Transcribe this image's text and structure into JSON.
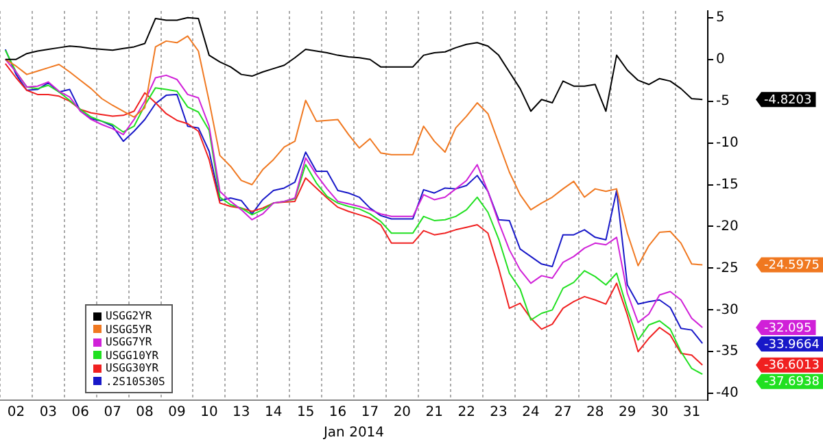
{
  "chart_data": {
    "type": "line",
    "xlabel": "Jan 2014",
    "categories": [
      null,
      "02",
      null,
      null,
      "03",
      null,
      null,
      "06",
      null,
      null,
      "07",
      null,
      null,
      "08",
      null,
      null,
      "09",
      null,
      null,
      "10",
      null,
      null,
      "13",
      null,
      null,
      "14",
      null,
      null,
      "15",
      null,
      null,
      "16",
      null,
      null,
      "17",
      null,
      null,
      "20",
      null,
      null,
      "21",
      null,
      null,
      "22",
      null,
      null,
      "23",
      null,
      null,
      "24",
      null,
      null,
      "27",
      null,
      null,
      "28",
      null,
      null,
      "29",
      null,
      null,
      "30",
      null,
      null,
      "31",
      null
    ],
    "ylim": [
      -40.8,
      5.8
    ],
    "yticks": [
      5,
      0,
      -5,
      -10,
      -15,
      -20,
      -25,
      -30,
      -35,
      -40
    ],
    "grid": "x",
    "legend": "bottom left",
    "marker": "none",
    "series": [
      {
        "name": "USGG2YR",
        "color": "#000000",
        "values": [
          0,
          0,
          0.7,
          1.0,
          1.2,
          1.4,
          1.6,
          1.5,
          1.3,
          1.2,
          1.1,
          1.3,
          1.5,
          1.9,
          4.9,
          4.7,
          4.7,
          5.0,
          4.9,
          0.5,
          -0.3,
          -0.9,
          -1.8,
          -2.0,
          -1.5,
          -1.1,
          -0.7,
          0.2,
          1.2,
          1.0,
          0.8,
          0.5,
          0.3,
          0.2,
          0,
          -0.9,
          -0.9,
          -0.9,
          -0.9,
          0.5,
          0.8,
          0.9,
          1.4,
          1.8,
          2.0,
          1.6,
          0.5,
          -1.5,
          -3.5,
          -6.2,
          -4.8,
          -5.2,
          -2.6,
          -3.2,
          -3.2,
          -3.0,
          -6.2,
          0.5,
          -1.3,
          -2.5,
          -3.0,
          -2.3,
          -2.6,
          -3.5,
          -4.7,
          -4.8
        ]
      },
      {
        "name": "USGG5YR",
        "color": "#f07820",
        "values": [
          0,
          -0.8,
          -1.8,
          -1.4,
          -1.0,
          -0.6,
          -1.5,
          -2.5,
          -3.5,
          -4.7,
          -5.5,
          -6.2,
          -6.9,
          -5.8,
          1.5,
          2.2,
          2.0,
          2.8,
          1.0,
          -5,
          -11.5,
          -12.8,
          -14.5,
          -15.0,
          -13.2,
          -12,
          -10.5,
          -9.8,
          -4.9,
          -7.4,
          -7.3,
          -7.2,
          -9,
          -10.6,
          -9.5,
          -11.2,
          -11.4,
          -11.4,
          -11.4,
          -8,
          -9.8,
          -11.1,
          -8.2,
          -6.8,
          -5.2,
          -6.5,
          -10.0,
          -13.5,
          -16.2,
          -18,
          -17.2,
          -16.5,
          -15.5,
          -14.6,
          -16.5,
          -15.5,
          -15.8,
          -15.5,
          -20.8,
          -24.7,
          -22.3,
          -20.7,
          -20.6,
          -22,
          -24.5,
          -24.6
        ]
      },
      {
        "name": "USGG7YR",
        "color": "#d020d8",
        "values": [
          0,
          -1.5,
          -3.3,
          -3.2,
          -2.7,
          -3.8,
          -4.5,
          -6.2,
          -7.2,
          -7.8,
          -8.3,
          -9,
          -7.2,
          -5.0,
          -2.2,
          -1.9,
          -2.4,
          -4.2,
          -4.6,
          -8,
          -15.8,
          -17.0,
          -18.0,
          -19.2,
          -18.5,
          -17.2,
          -17.0,
          -16.6,
          -11.8,
          -13.8,
          -15.5,
          -17,
          -17.3,
          -17.6,
          -18.0,
          -18.5,
          -18.8,
          -18.8,
          -18.8,
          -16.2,
          -16.8,
          -16.5,
          -15.5,
          -14.5,
          -12.6,
          -15.8,
          -19.5,
          -22.8,
          -25.2,
          -26.8,
          -25.9,
          -26.2,
          -24.3,
          -23.6,
          -22.6,
          -22.0,
          -22.2,
          -21.3,
          -28,
          -31.5,
          -30.5,
          -28.2,
          -27.8,
          -28.8,
          -31.0,
          -32.1
        ]
      },
      {
        "name": "USGG10YR",
        "color": "#20e020",
        "values": [
          1.1,
          -1.5,
          -3.3,
          -3.5,
          -3.1,
          -3.9,
          -4.9,
          -6.0,
          -6.9,
          -7.4,
          -7.8,
          -8.7,
          -8.0,
          -5.5,
          -3.4,
          -3.6,
          -3.8,
          -5.7,
          -6.3,
          -8.5,
          -16.5,
          -17.4,
          -17.8,
          -18.6,
          -18.0,
          -17.2,
          -17.0,
          -16.7,
          -12.6,
          -14.8,
          -16.4,
          -17.2,
          -17.6,
          -17.9,
          -18.5,
          -19.4,
          -20.8,
          -20.8,
          -20.8,
          -18.8,
          -19.3,
          -19.2,
          -18.8,
          -18.0,
          -16.5,
          -18.3,
          -21.5,
          -25.6,
          -27.5,
          -31.2,
          -30.4,
          -30.0,
          -27.4,
          -26.7,
          -25.3,
          -26.0,
          -27.0,
          -25.6,
          -29.9,
          -33.6,
          -31.8,
          -31.3,
          -32.3,
          -35.0,
          -37.0,
          -37.7
        ]
      },
      {
        "name": "USGG30YR",
        "color": "#f02020",
        "values": [
          -0.5,
          -2.2,
          -3.7,
          -4.2,
          -4.2,
          -4.4,
          -5.0,
          -6.0,
          -6.4,
          -6.6,
          -6.8,
          -6.7,
          -6.2,
          -4.0,
          -5.2,
          -6.5,
          -7.3,
          -7.7,
          -8.6,
          -12,
          -17.2,
          -17.6,
          -17.8,
          -18.2,
          -17.8,
          -17.2,
          -17.1,
          -17.0,
          -14.2,
          -15.4,
          -16.6,
          -17.7,
          -18.2,
          -18.6,
          -19.0,
          -19.8,
          -22,
          -22,
          -22,
          -20.5,
          -21.0,
          -20.8,
          -20.4,
          -20.1,
          -19.8,
          -20.8,
          -25.0,
          -29.8,
          -29.2,
          -31.0,
          -32.3,
          -31.7,
          -29.8,
          -29.0,
          -28.4,
          -28.8,
          -29.3,
          -26.8,
          -30.6,
          -35.0,
          -33.4,
          -32.1,
          -33.0,
          -35.2,
          -35.4,
          -36.6
        ]
      },
      {
        "name": ".2S10S30S",
        "color": "#1818c8",
        "values": [
          1.2,
          -1.8,
          -3.7,
          -3.6,
          -2.8,
          -3.9,
          -3.6,
          -6.2,
          -7.1,
          -7.4,
          -8.0,
          -9.8,
          -8.6,
          -7.2,
          -5.3,
          -4.3,
          -4.2,
          -8.0,
          -8.2,
          -11,
          -16.9,
          -16.6,
          -16.9,
          -18.5,
          -16.8,
          -15.7,
          -15.4,
          -14.7,
          -11.1,
          -13.4,
          -13.4,
          -15.7,
          -16.0,
          -16.5,
          -17.8,
          -18.7,
          -19.1,
          -19.1,
          -19.1,
          -15.6,
          -16.0,
          -15.4,
          -15.5,
          -15.1,
          -13.9,
          -15.8,
          -19.2,
          -19.3,
          -22.7,
          -23.6,
          -24.5,
          -24.8,
          -21,
          -21,
          -20.4,
          -21.3,
          -21.6,
          -15.7,
          -27,
          -29.3,
          -29.0,
          -28.8,
          -29.7,
          -32.2,
          -32.4,
          -34.0
        ]
      }
    ],
    "annotations": [
      "-4.8203",
      "-24.5975",
      "-32.095",
      "-37.6938",
      "-36.6013",
      "-33.9664"
    ]
  }
}
